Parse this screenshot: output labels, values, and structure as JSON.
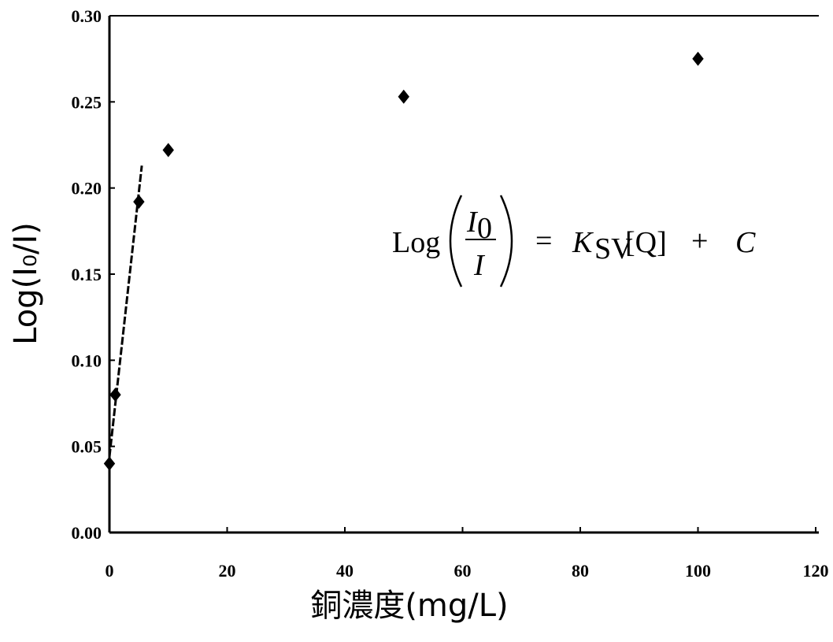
{
  "chart_data": {
    "type": "scatter",
    "xlabel": "銅濃度(mg/L)",
    "ylabel": "Log(I₀/I)",
    "xlim": [
      0,
      120
    ],
    "ylim": [
      0,
      0.3
    ],
    "x_ticks": [
      "0",
      "20",
      "40",
      "60",
      "80",
      "100",
      "120"
    ],
    "y_ticks": [
      "0.00",
      "0.05",
      "0.10",
      "0.15",
      "0.20",
      "0.25",
      "0.30"
    ],
    "series": [
      {
        "marker": "diamond",
        "color": "#000000",
        "points": [
          {
            "x": 0,
            "y": 0.04
          },
          {
            "x": 1,
            "y": 0.08
          },
          {
            "x": 5,
            "y": 0.192
          },
          {
            "x": 10,
            "y": 0.222
          },
          {
            "x": 50,
            "y": 0.253
          },
          {
            "x": 100,
            "y": 0.275
          }
        ]
      }
    ],
    "trendline": {
      "style": "dashed",
      "color": "#000000",
      "from": {
        "x": 0,
        "y": 0.044
      },
      "to": {
        "x": 5.5,
        "y": 0.213
      }
    },
    "equation": {
      "lhs_func": "Log",
      "numerator": "I",
      "numerator_sub": "0",
      "denominator": "I",
      "equals": "=",
      "k": "K",
      "k_sub": "SV",
      "bracket_term": "[Q]",
      "plus": "+",
      "constant": "C"
    },
    "grid": false,
    "legend": "none"
  }
}
